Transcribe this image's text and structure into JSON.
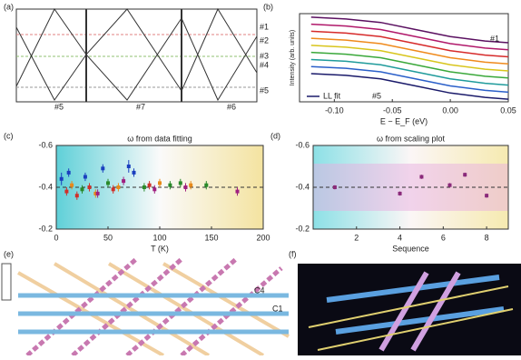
{
  "panels": {
    "a": "(a)",
    "b": "(b)",
    "c": "(c)",
    "d": "(d)",
    "e": "(e)",
    "f": "(f)"
  },
  "panel_a": {
    "right_labels": [
      "#1",
      "#2",
      "#3",
      "#4",
      "#5"
    ],
    "bottom_labels": [
      "#5",
      "#7",
      "#6"
    ]
  },
  "panel_e": {
    "labels": [
      "C4",
      "C1"
    ]
  },
  "chart_data": [
    {
      "type": "line",
      "x_label": "E − E_F (eV)",
      "y_label": "Intensity (arb. units)",
      "x": [
        -0.12,
        -0.09,
        -0.06,
        -0.03,
        0,
        0.03,
        0.05
      ],
      "xlim": [
        -0.13,
        0.05
      ],
      "ylim": [
        0,
        10
      ],
      "xticks": [
        {
          "value": -0.1,
          "label": "-0.10"
        },
        {
          "value": -0.05,
          "label": "-0.05"
        },
        {
          "value": 0,
          "label": "0.00"
        },
        {
          "value": 0.05,
          "label": "0.05"
        }
      ],
      "annotations": [
        "#1",
        "#5"
      ],
      "legend_label": "LL fit",
      "series": [
        {
          "color": "#5a1060",
          "values": [
            9.6,
            9.4,
            9.0,
            8.2,
            7.4,
            6.9,
            6.7
          ]
        },
        {
          "color": "#b0186a",
          "values": [
            8.8,
            8.6,
            8.2,
            7.4,
            6.6,
            6.1,
            5.9
          ]
        },
        {
          "color": "#d62a2a",
          "values": [
            8.0,
            7.8,
            7.4,
            6.6,
            5.8,
            5.3,
            5.1
          ]
        },
        {
          "color": "#ef8a1c",
          "values": [
            7.2,
            7.0,
            6.6,
            5.8,
            5.0,
            4.5,
            4.3
          ]
        },
        {
          "color": "#d8c51c",
          "values": [
            6.4,
            6.2,
            5.8,
            5.0,
            4.2,
            3.7,
            3.5
          ]
        },
        {
          "color": "#3aa83a",
          "values": [
            5.6,
            5.4,
            5.0,
            4.2,
            3.4,
            2.9,
            2.7
          ]
        },
        {
          "color": "#1f9b9b",
          "values": [
            4.8,
            4.6,
            4.2,
            3.4,
            2.6,
            2.1,
            1.9
          ]
        },
        {
          "color": "#2a5fc9",
          "values": [
            4.0,
            3.8,
            3.4,
            2.6,
            1.8,
            1.3,
            1.1
          ]
        },
        {
          "color": "#1a1a6a",
          "values": [
            3.2,
            3.0,
            2.6,
            1.8,
            1.0,
            0.5,
            0.3
          ]
        }
      ]
    },
    {
      "type": "scatter",
      "title": "ω from data fitting",
      "x_label": "T (K)",
      "xlim": [
        0,
        200
      ],
      "ylim": [
        -0.2,
        -0.6
      ],
      "xticks": [
        0,
        50,
        100,
        150,
        200
      ],
      "yticks": [
        -0.6,
        -0.4,
        -0.2
      ],
      "ref_line": -0.4,
      "series": [
        {
          "color": "#1a3fbf",
          "x": [
            5,
            12,
            28,
            45,
            70,
            75
          ],
          "values": [
            -0.44,
            -0.47,
            -0.45,
            -0.49,
            -0.5,
            -0.47
          ],
          "errors": [
            0.03,
            0.02,
            0.02,
            0.02,
            0.03,
            0.02
          ]
        },
        {
          "color": "#d0302a",
          "x": [
            10,
            20,
            32,
            55,
            90
          ],
          "values": [
            -0.38,
            -0.36,
            -0.4,
            -0.39,
            -0.41
          ],
          "errors": [
            0.02,
            0.02,
            0.02,
            0.02,
            0.02
          ]
        },
        {
          "color": "#e88a1a",
          "x": [
            15,
            38,
            60,
            100,
            130
          ],
          "values": [
            -0.41,
            -0.37,
            -0.4,
            -0.42,
            -0.41
          ],
          "errors": [
            0.02,
            0.02,
            0.02,
            0.02,
            0.02
          ]
        },
        {
          "color": "#2a8a2a",
          "x": [
            25,
            50,
            85,
            110,
            120,
            145
          ],
          "values": [
            -0.39,
            -0.42,
            -0.4,
            -0.41,
            -0.42,
            -0.41
          ],
          "errors": [
            0.02,
            0.02,
            0.02,
            0.02,
            0.02,
            0.02
          ]
        },
        {
          "color": "#a02080",
          "x": [
            40,
            65,
            95,
            125,
            175
          ],
          "values": [
            -0.37,
            -0.43,
            -0.39,
            -0.4,
            -0.38
          ],
          "errors": [
            0.02,
            0.02,
            0.02,
            0.02,
            0.02
          ]
        }
      ]
    },
    {
      "type": "scatter",
      "title": "ω from scaling plot",
      "x_label": "Sequence",
      "xlim": [
        0,
        9
      ],
      "ylim": [
        -0.2,
        -0.6
      ],
      "xticks": [
        2,
        4,
        6,
        8
      ],
      "yticks": [
        -0.6,
        -0.4,
        -0.2
      ],
      "ref_line": -0.4,
      "series": [
        {
          "color": "#8a2a7a",
          "x": [
            1,
            4,
            5,
            6.3,
            7,
            8
          ],
          "values": [
            -0.4,
            -0.37,
            -0.45,
            -0.41,
            -0.46,
            -0.36
          ],
          "errors": [
            0.01,
            0.01,
            0.01,
            0.01,
            0.01,
            0.01
          ]
        }
      ]
    }
  ]
}
